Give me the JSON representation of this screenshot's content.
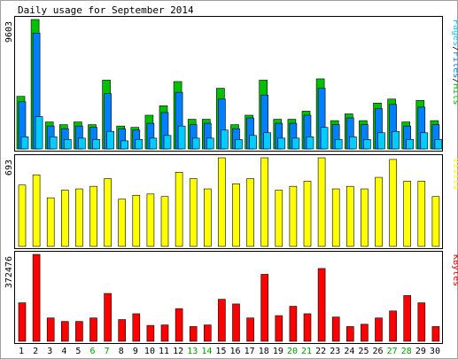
{
  "title": "Daily usage for September 2014",
  "chart_data": [
    {
      "type": "bar",
      "panel": "hits-files-pages",
      "title": "Daily usage for September 2014",
      "y_max_label": "9603",
      "ylim": [
        0,
        9603
      ],
      "legend": [
        {
          "name": "Pages",
          "color": "#00ccff"
        },
        {
          "name": "Files",
          "color": "#0080ff"
        },
        {
          "name": "Hits",
          "color": "#00c000"
        }
      ],
      "categories": [
        "1",
        "2",
        "3",
        "4",
        "5",
        "6",
        "7",
        "8",
        "9",
        "10",
        "11",
        "12",
        "13",
        "14",
        "15",
        "16",
        "17",
        "18",
        "19",
        "20",
        "21",
        "22",
        "23",
        "24",
        "25",
        "26",
        "27",
        "28",
        "29",
        "30"
      ],
      "series": [
        {
          "name": "Hits",
          "values": [
            3900,
            9603,
            2000,
            1800,
            2000,
            1800,
            5100,
            1700,
            1600,
            2500,
            3200,
            5000,
            2200,
            2200,
            4500,
            1800,
            2500,
            5100,
            2200,
            2200,
            2800,
            5200,
            2100,
            2600,
            2100,
            3400,
            3700,
            2000,
            3600,
            2100
          ]
        },
        {
          "name": "Files",
          "values": [
            3500,
            8600,
            1700,
            1500,
            1700,
            1600,
            4100,
            1500,
            1400,
            1900,
            2700,
            4200,
            1800,
            1900,
            3700,
            1500,
            2300,
            4000,
            1900,
            1900,
            2500,
            4500,
            1800,
            2300,
            1800,
            3000,
            3300,
            1700,
            3100,
            1800
          ]
        },
        {
          "name": "Pages",
          "values": [
            900,
            2400,
            900,
            700,
            800,
            700,
            1300,
            600,
            700,
            800,
            1000,
            1700,
            800,
            800,
            1400,
            700,
            1000,
            1200,
            800,
            800,
            900,
            1600,
            700,
            900,
            700,
            1200,
            1300,
            700,
            1200,
            700
          ]
        }
      ]
    },
    {
      "type": "bar",
      "panel": "visits",
      "y_max_label": "693",
      "ylim": [
        0,
        693
      ],
      "legend": [
        {
          "name": "Visits",
          "color": "#ffff00"
        }
      ],
      "categories": [
        "1",
        "2",
        "3",
        "4",
        "5",
        "6",
        "7",
        "8",
        "9",
        "10",
        "11",
        "12",
        "13",
        "14",
        "15",
        "16",
        "17",
        "18",
        "19",
        "20",
        "21",
        "22",
        "23",
        "24",
        "25",
        "26",
        "27",
        "28",
        "29",
        "30"
      ],
      "series": [
        {
          "name": "Visits",
          "values": [
            480,
            560,
            380,
            440,
            450,
            470,
            530,
            370,
            400,
            410,
            390,
            580,
            530,
            450,
            693,
            490,
            530,
            693,
            440,
            470,
            510,
            693,
            450,
            470,
            450,
            540,
            680,
            510,
            510,
            390
          ]
        }
      ]
    },
    {
      "type": "bar",
      "panel": "kbytes",
      "y_max_label": "372476",
      "ylim": [
        0,
        372476
      ],
      "legend": [
        {
          "name": "KBytes",
          "color": "#ff0000"
        }
      ],
      "categories": [
        "1",
        "2",
        "3",
        "4",
        "5",
        "6",
        "7",
        "8",
        "9",
        "10",
        "11",
        "12",
        "13",
        "14",
        "15",
        "16",
        "17",
        "18",
        "19",
        "20",
        "21",
        "22",
        "23",
        "24",
        "25",
        "26",
        "27",
        "28",
        "29",
        "30"
      ],
      "series": [
        {
          "name": "KBytes",
          "values": [
            165000,
            372476,
            100000,
            85000,
            85000,
            100000,
            205000,
            93000,
            118000,
            68000,
            70000,
            140000,
            63000,
            70000,
            180000,
            160000,
            100000,
            287000,
            110000,
            150000,
            118000,
            312000,
            104000,
            63000,
            73000,
            100000,
            130000,
            196000,
            165000,
            63000
          ]
        }
      ]
    }
  ],
  "x_axis": {
    "labels": [
      {
        "text": "1",
        "color": "#000000"
      },
      {
        "text": "2",
        "color": "#000000"
      },
      {
        "text": "3",
        "color": "#000000"
      },
      {
        "text": "4",
        "color": "#000000"
      },
      {
        "text": "5",
        "color": "#000000"
      },
      {
        "text": "6",
        "color": "#00a000"
      },
      {
        "text": "7",
        "color": "#00a000"
      },
      {
        "text": "8",
        "color": "#000000"
      },
      {
        "text": "9",
        "color": "#000000"
      },
      {
        "text": "10",
        "color": "#000000"
      },
      {
        "text": "11",
        "color": "#000000"
      },
      {
        "text": "12",
        "color": "#000000"
      },
      {
        "text": "13",
        "color": "#00a000"
      },
      {
        "text": "14",
        "color": "#00a000"
      },
      {
        "text": "15",
        "color": "#000000"
      },
      {
        "text": "16",
        "color": "#000000"
      },
      {
        "text": "17",
        "color": "#000000"
      },
      {
        "text": "18",
        "color": "#000000"
      },
      {
        "text": "19",
        "color": "#000000"
      },
      {
        "text": "20",
        "color": "#00a000"
      },
      {
        "text": "21",
        "color": "#00a000"
      },
      {
        "text": "22",
        "color": "#000000"
      },
      {
        "text": "23",
        "color": "#000000"
      },
      {
        "text": "24",
        "color": "#000000"
      },
      {
        "text": "25",
        "color": "#000000"
      },
      {
        "text": "26",
        "color": "#000000"
      },
      {
        "text": "27",
        "color": "#00a000"
      },
      {
        "text": "28",
        "color": "#00a000"
      },
      {
        "text": "29",
        "color": "#000000"
      },
      {
        "text": "30",
        "color": "#000000"
      }
    ]
  },
  "colors": {
    "background": "#ffffff",
    "panel_bg": "#ffffff",
    "border": "#000000",
    "hits": "#00c000",
    "files": "#0080ff",
    "pages": "#00ccff",
    "visits": "#ffff00",
    "kbytes": "#ff0000"
  }
}
